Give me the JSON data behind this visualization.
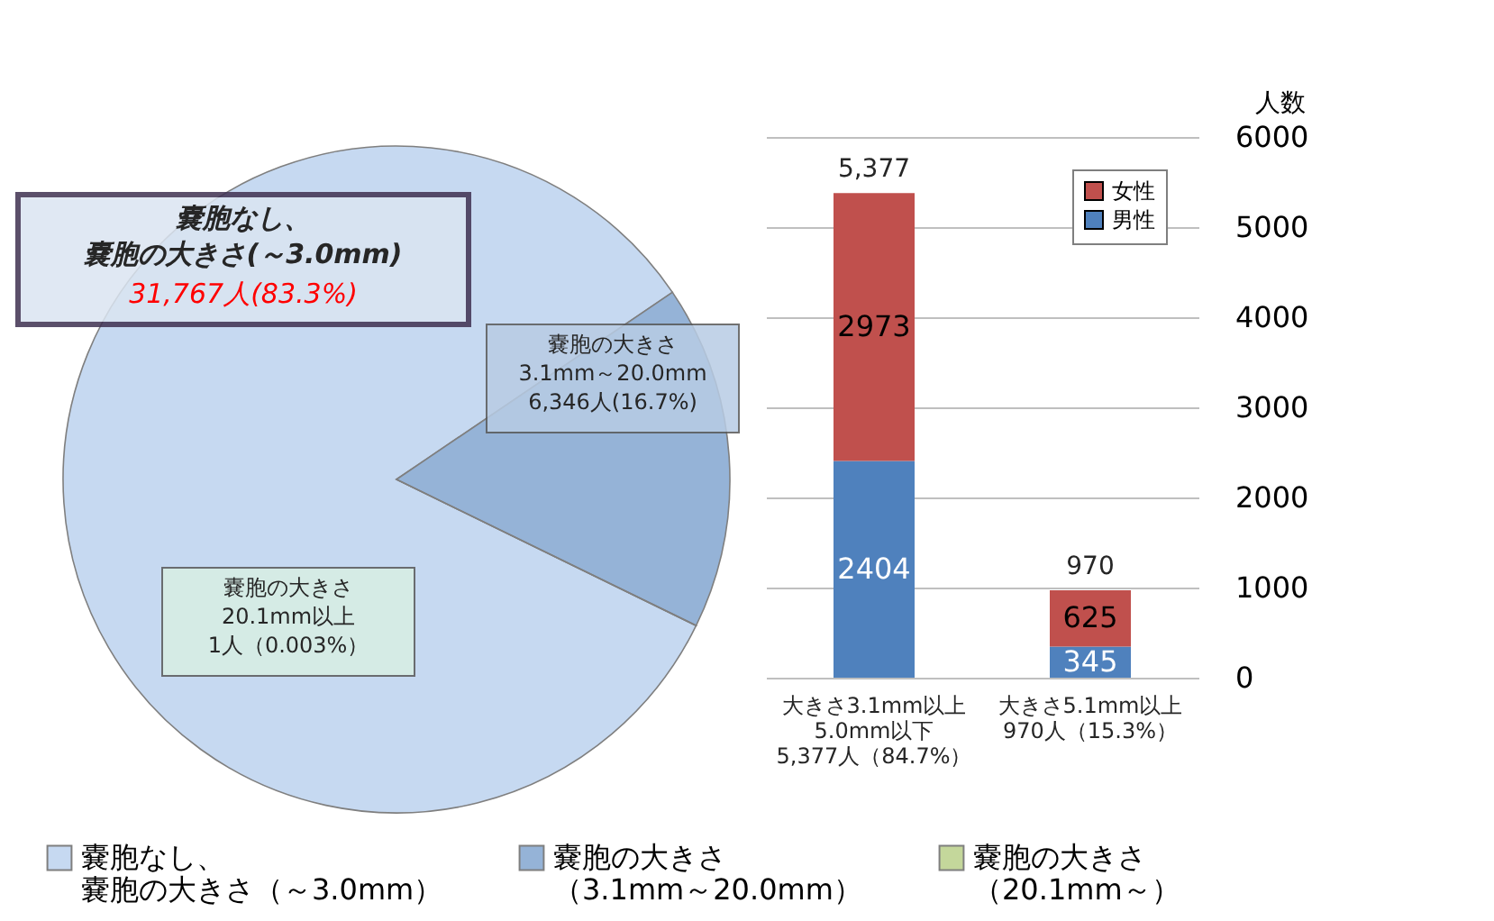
{
  "chart_data": [
    {
      "type": "pie",
      "categories": [
        "嚢胞なし、嚢胞の大きさ（～3.0mm）",
        "嚢胞の大きさ（3.1mm～20.0mm）",
        "嚢胞の大きさ（20.1mm～）"
      ],
      "values": [
        83.3,
        16.7,
        0.003
      ],
      "colors": [
        "#c6d9f1",
        "#95b3d7",
        "#c4d79b"
      ],
      "legend": "bottom",
      "annotations": [
        "嚢胞なし、嚢胞の大きさ(～3.0mm)",
        "31,767人(83.3%)",
        "嚢胞の大きさ\n3.1mm～20.0mm\n6,346人(16.7%)",
        "嚢胞の大きさ\n20.1mm以上\n1人（0.003%）"
      ]
    },
    {
      "type": "bar",
      "stacked": true,
      "categories": [
        "大きさ3.1mm以上\n5.0mm以下\n5,377人（84.7%）",
        "大きさ5.1mm以上\n970人（15.3%）"
      ],
      "series": [
        {
          "name": "男性",
          "color": "#4f81bd",
          "values": [
            2404,
            345
          ]
        },
        {
          "name": "女性",
          "color": "#c0504d",
          "values": [
            2973,
            625
          ]
        }
      ],
      "totals": [
        "5,377",
        "970"
      ],
      "data_labels": true,
      "ylabel": "人数",
      "ylim": [
        0,
        6000
      ],
      "yticks": [
        0,
        1000,
        2000,
        3000,
        4000,
        5000,
        6000
      ],
      "grid": "y",
      "legend": "top right"
    }
  ]
}
